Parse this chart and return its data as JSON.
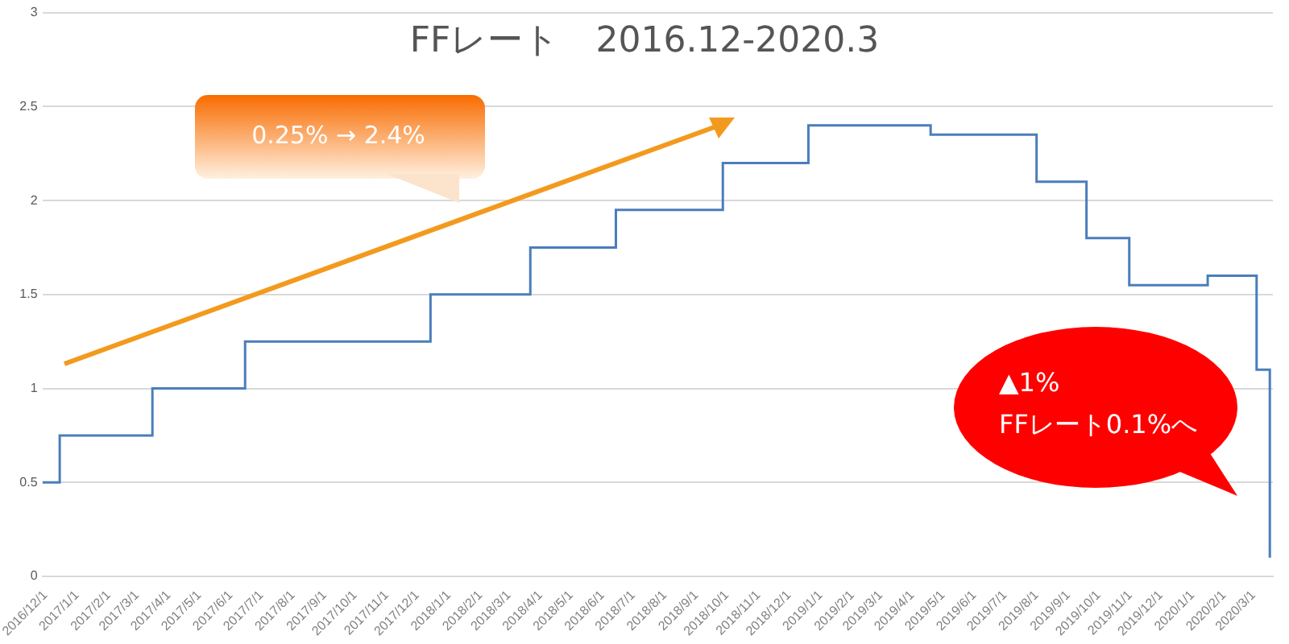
{
  "chart_data": {
    "type": "step",
    "title": "FFレート　2016.12-2020.3",
    "x": [
      "2016-11-28",
      "2016-12-15",
      "2017-03-16",
      "2017-06-15",
      "2017-12-14",
      "2018-03-22",
      "2018-06-14",
      "2018-09-27",
      "2018-12-20",
      "2019-04-19",
      "2019-08-01",
      "2019-09-19",
      "2019-10-31",
      "2020-01-16",
      "2020-03-04",
      "2020-03-17"
    ],
    "series": [
      {
        "color": "#4a7ebb",
        "values": [
          0.5,
          0.75,
          1,
          1.25,
          1.5,
          1.75,
          1.95,
          2.2,
          2.4,
          2.35,
          2.1,
          1.8,
          1.55,
          1.6,
          1.1,
          0.1
        ]
      }
    ],
    "xlim": [
      "2016-11-28",
      "2020-03-20"
    ],
    "xticks": [
      {
        "value": "2016-12-01",
        "label": "2016/12/1"
      },
      {
        "value": "2017-01-01",
        "label": "2017/1/1"
      },
      {
        "value": "2017-02-01",
        "label": "2017/2/1"
      },
      {
        "value": "2017-03-01",
        "label": "2017/3/1"
      },
      {
        "value": "2017-04-01",
        "label": "2017/4/1"
      },
      {
        "value": "2017-05-01",
        "label": "2017/5/1"
      },
      {
        "value": "2017-06-01",
        "label": "2017/6/1"
      },
      {
        "value": "2017-07-01",
        "label": "2017/7/1"
      },
      {
        "value": "2017-08-01",
        "label": "2017/8/1"
      },
      {
        "value": "2017-09-01",
        "label": "2017/9/1"
      },
      {
        "value": "2017-10-01",
        "label": "2017/10/1"
      },
      {
        "value": "2017-11-01",
        "label": "2017/11/1"
      },
      {
        "value": "2017-12-01",
        "label": "2017/12/1"
      },
      {
        "value": "2018-01-01",
        "label": "2018/1/1"
      },
      {
        "value": "2018-02-01",
        "label": "2018/2/1"
      },
      {
        "value": "2018-03-01",
        "label": "2018/3/1"
      },
      {
        "value": "2018-04-01",
        "label": "2018/4/1"
      },
      {
        "value": "2018-05-01",
        "label": "2018/5/1"
      },
      {
        "value": "2018-06-01",
        "label": "2018/6/1"
      },
      {
        "value": "2018-07-01",
        "label": "2018/7/1"
      },
      {
        "value": "2018-08-01",
        "label": "2018/8/1"
      },
      {
        "value": "2018-09-01",
        "label": "2018/9/1"
      },
      {
        "value": "2018-10-01",
        "label": "2018/10/1"
      },
      {
        "value": "2018-11-01",
        "label": "2018/11/1"
      },
      {
        "value": "2018-12-01",
        "label": "2018/12/1"
      },
      {
        "value": "2019-01-01",
        "label": "2019/1/1"
      },
      {
        "value": "2019-02-01",
        "label": "2019/2/1"
      },
      {
        "value": "2019-03-01",
        "label": "2019/3/1"
      },
      {
        "value": "2019-04-01",
        "label": "2019/4/1"
      },
      {
        "value": "2019-05-01",
        "label": "2019/5/1"
      },
      {
        "value": "2019-06-01",
        "label": "2019/6/1"
      },
      {
        "value": "2019-07-01",
        "label": "2019/7/1"
      },
      {
        "value": "2019-08-01",
        "label": "2019/8/1"
      },
      {
        "value": "2019-09-01",
        "label": "2019/9/1"
      },
      {
        "value": "2019-10-01",
        "label": "2019/10/1"
      },
      {
        "value": "2019-11-01",
        "label": "2019/11/1"
      },
      {
        "value": "2019-12-01",
        "label": "2019/12/1"
      },
      {
        "value": "2020-01-01",
        "label": "2020/1/1"
      },
      {
        "value": "2020-02-01",
        "label": "2020/2/1"
      },
      {
        "value": "2020-03-01",
        "label": "2020/3/1"
      }
    ],
    "ylim": [
      0,
      3
    ],
    "yticks": [
      0,
      0.5,
      1,
      1.5,
      2,
      2.5,
      3
    ],
    "grid": "y",
    "annotations": [
      "0.25% → 2.4%",
      "▲1%\nFFレート0.1%へ"
    ]
  }
}
